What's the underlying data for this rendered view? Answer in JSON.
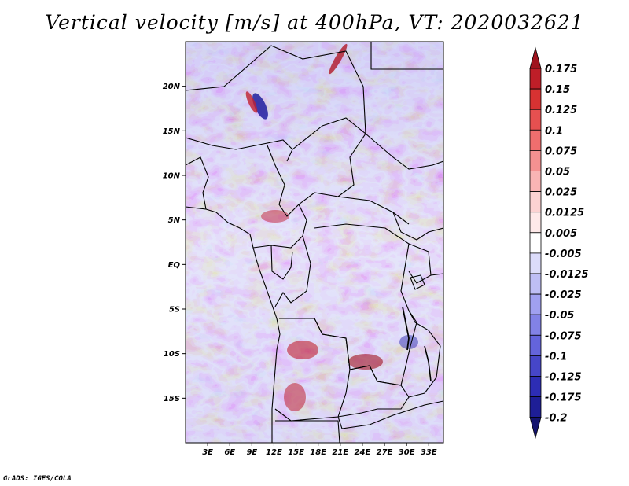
{
  "title": "Vertical velocity [m/s] at 400hPa, VT: 2020032621",
  "credit": "GrADS: IGES/COLA",
  "map": {
    "lon_range": [
      0,
      35
    ],
    "lat_range": [
      -20,
      25
    ],
    "lon_labels": [
      {
        "lon": 3,
        "text": "3E"
      },
      {
        "lon": 6,
        "text": "6E"
      },
      {
        "lon": 9,
        "text": "9E"
      },
      {
        "lon": 12,
        "text": "12E"
      },
      {
        "lon": 15,
        "text": "15E"
      },
      {
        "lon": 18,
        "text": "18E"
      },
      {
        "lon": 21,
        "text": "21E"
      },
      {
        "lon": 24,
        "text": "24E"
      },
      {
        "lon": 27,
        "text": "27E"
      },
      {
        "lon": 30,
        "text": "30E"
      },
      {
        "lon": 33,
        "text": "33E"
      }
    ],
    "lat_labels": [
      {
        "lat": 20,
        "text": "20N"
      },
      {
        "lat": 15,
        "text": "15N"
      },
      {
        "lat": 10,
        "text": "10N"
      },
      {
        "lat": 5,
        "text": "5N"
      },
      {
        "lat": 0,
        "text": "EQ"
      },
      {
        "lat": -5,
        "text": "5S"
      },
      {
        "lat": -10,
        "text": "10S"
      },
      {
        "lat": -15,
        "text": "15S"
      }
    ]
  },
  "colorbar": {
    "levels": [
      "0.175",
      "0.15",
      "0.125",
      "0.1",
      "0.075",
      "0.05",
      "0.025",
      "0.0125",
      "0.005",
      "-0.005",
      "-0.0125",
      "-0.025",
      "-0.05",
      "-0.075",
      "-0.1",
      "-0.125",
      "-0.175",
      "-0.2"
    ],
    "colors": [
      "#a0141e",
      "#be1e28",
      "#d73232",
      "#e65050",
      "#f06e6e",
      "#f59191",
      "#f9b4b4",
      "#fcd2d2",
      "#fee9e9",
      "#ffffff",
      "#dcdcfa",
      "#bebef5",
      "#a0a0f0",
      "#8282e6",
      "#6464dc",
      "#4646c8",
      "#2d2db4",
      "#1e1e96",
      "#14146e"
    ]
  }
}
